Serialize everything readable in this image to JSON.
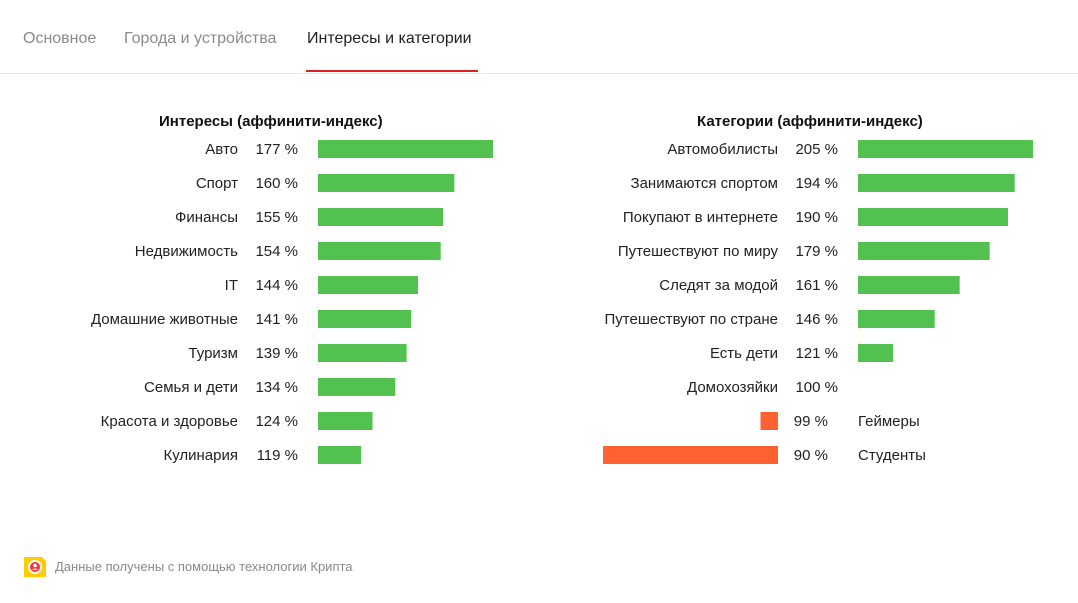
{
  "tabs": [
    {
      "label": "Основное",
      "active": false
    },
    {
      "label": "Города и устройства",
      "active": false
    },
    {
      "label": "Интересы и категории",
      "active": true
    }
  ],
  "colors": {
    "above": "#53c14f",
    "below": "#ff6131",
    "tab_underline": "#e02020",
    "logo": "#ffcc00"
  },
  "chart_data": [
    {
      "type": "bar",
      "title": "Интересы (аффинити-индекс)",
      "unit": "%",
      "categories": [
        "Авто",
        "Спорт",
        "Финансы",
        "Недвижимость",
        "IT",
        "Домашние животные",
        "Туризм",
        "Семья и дети",
        "Красота и здоровье",
        "Кулинария"
      ],
      "values": [
        177,
        160,
        155,
        154,
        144,
        141,
        139,
        134,
        124,
        119
      ],
      "baseline": 100
    },
    {
      "type": "bar",
      "title": "Категории (аффинити-индекс)",
      "unit": "%",
      "categories": [
        "Автомобилисты",
        "Занимаются спортом",
        "Покупают в интернете",
        "Путешествуют по миру",
        "Следят за модой",
        "Путешествуют по стране",
        "Есть дети",
        "Домохозяйки",
        "Геймеры",
        "Студенты"
      ],
      "values": [
        205,
        194,
        190,
        179,
        161,
        146,
        121,
        100,
        99,
        90
      ],
      "baseline": 100
    }
  ],
  "footer": {
    "text": "Данные получены с помощью технологии Крипта",
    "icon": "crypta-logo-icon"
  }
}
